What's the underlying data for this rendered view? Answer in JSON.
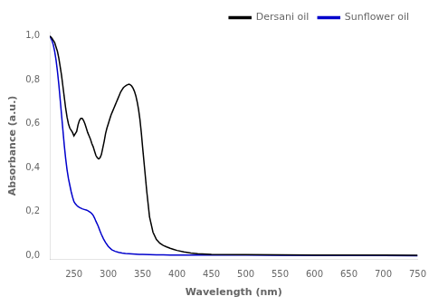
{
  "chart_data": {
    "type": "line",
    "xlabel": "Wavelength (nm)",
    "ylabel": "Absorbance (a.u.)",
    "xlim": [
      215,
      750
    ],
    "ylim": [
      -0.02,
      1.02
    ],
    "xticks": [
      250,
      300,
      350,
      400,
      450,
      500,
      550,
      600,
      650,
      700,
      750
    ],
    "yticks": [
      {
        "value": 0.0,
        "label": "0,0"
      },
      {
        "value": 0.2,
        "label": "0,2"
      },
      {
        "value": 0.4,
        "label": "0,4"
      },
      {
        "value": 0.6,
        "label": "0,6"
      },
      {
        "value": 0.8,
        "label": "0,8"
      },
      {
        "value": 1.0,
        "label": "1,0"
      }
    ],
    "grid": false,
    "legend": "upper right",
    "series": [
      {
        "name": "Dersani oil",
        "color": "black",
        "x": [
          215,
          218,
          220,
          222,
          224,
          226,
          228,
          230,
          232,
          234,
          236,
          238,
          240,
          242,
          244,
          246,
          248,
          250,
          252,
          254,
          256,
          258,
          260,
          262,
          264,
          266,
          268,
          270,
          272,
          274,
          276,
          278,
          280,
          282,
          284,
          286,
          288,
          290,
          292,
          294,
          296,
          298,
          300,
          302,
          304,
          306,
          308,
          310,
          312,
          314,
          316,
          318,
          320,
          322,
          324,
          326,
          328,
          330,
          332,
          334,
          336,
          338,
          340,
          342,
          344,
          346,
          348,
          350,
          353,
          356,
          360,
          365,
          370,
          375,
          380,
          385,
          390,
          395,
          400,
          410,
          420,
          430,
          450,
          500,
          550,
          600,
          650,
          700,
          750
        ],
        "values": [
          1.0,
          0.99,
          0.98,
          0.97,
          0.95,
          0.93,
          0.9,
          0.86,
          0.82,
          0.77,
          0.72,
          0.67,
          0.63,
          0.6,
          0.58,
          0.57,
          0.56,
          0.545,
          0.555,
          0.565,
          0.595,
          0.615,
          0.625,
          0.625,
          0.615,
          0.6,
          0.58,
          0.56,
          0.545,
          0.53,
          0.51,
          0.495,
          0.475,
          0.455,
          0.445,
          0.44,
          0.445,
          0.46,
          0.49,
          0.52,
          0.555,
          0.58,
          0.6,
          0.62,
          0.64,
          0.655,
          0.67,
          0.685,
          0.7,
          0.715,
          0.73,
          0.745,
          0.755,
          0.765,
          0.77,
          0.775,
          0.778,
          0.78,
          0.778,
          0.772,
          0.762,
          0.748,
          0.728,
          0.7,
          0.665,
          0.62,
          0.56,
          0.49,
          0.39,
          0.29,
          0.175,
          0.105,
          0.072,
          0.055,
          0.045,
          0.038,
          0.032,
          0.027,
          0.022,
          0.015,
          0.01,
          0.007,
          0.004,
          0.003,
          0.002,
          0.001,
          0.001,
          0.001,
          0.0
        ]
      },
      {
        "name": "Sunflower oil",
        "color": "#0000cc",
        "x": [
          215,
          218,
          220,
          222,
          224,
          226,
          228,
          230,
          232,
          234,
          236,
          238,
          240,
          242,
          244,
          246,
          248,
          250,
          252,
          254,
          256,
          258,
          260,
          262,
          264,
          266,
          268,
          270,
          272,
          274,
          276,
          278,
          280,
          282,
          285,
          288,
          290,
          293,
          296,
          300,
          305,
          310,
          315,
          320,
          325,
          330,
          335,
          340,
          345,
          350,
          360,
          370,
          380,
          390,
          400,
          420,
          450,
          500,
          550,
          600,
          650,
          700,
          750
        ],
        "values": [
          1.0,
          0.98,
          0.96,
          0.93,
          0.89,
          0.84,
          0.78,
          0.71,
          0.64,
          0.57,
          0.5,
          0.44,
          0.39,
          0.35,
          0.32,
          0.29,
          0.265,
          0.245,
          0.235,
          0.228,
          0.222,
          0.218,
          0.215,
          0.212,
          0.21,
          0.208,
          0.206,
          0.204,
          0.2,
          0.196,
          0.19,
          0.182,
          0.17,
          0.155,
          0.135,
          0.11,
          0.095,
          0.075,
          0.058,
          0.04,
          0.025,
          0.018,
          0.013,
          0.01,
          0.008,
          0.007,
          0.006,
          0.005,
          0.004,
          0.004,
          0.003,
          0.002,
          0.002,
          0.001,
          0.001,
          0.001,
          0.001,
          0.001,
          0.0,
          0.0,
          0.0,
          -0.001,
          -0.002
        ]
      }
    ]
  }
}
